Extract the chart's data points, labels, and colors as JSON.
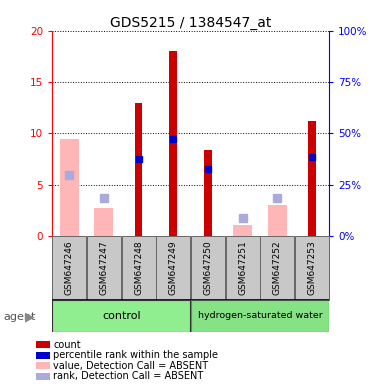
{
  "title": "GDS5215 / 1384547_at",
  "samples": [
    "GSM647246",
    "GSM647247",
    "GSM647248",
    "GSM647249",
    "GSM647250",
    "GSM647251",
    "GSM647252",
    "GSM647253"
  ],
  "red_bars": [
    0,
    0,
    13,
    18,
    8.4,
    0,
    0,
    11.2
  ],
  "pink_bars": [
    9.5,
    2.7,
    0,
    0,
    0,
    1.1,
    3.0,
    0
  ],
  "blue_squares": [
    0,
    0,
    7.5,
    9.5,
    6.5,
    0,
    0,
    7.7
  ],
  "lavender_squares": [
    6.0,
    3.7,
    0,
    0,
    0,
    1.8,
    3.7,
    0
  ],
  "ylim": [
    0,
    20
  ],
  "yticks_left": [
    0,
    5,
    10,
    15,
    20
  ],
  "yticks_right": [
    0,
    25,
    50,
    75,
    100
  ],
  "red_color": "#cc0000",
  "pink_color": "#ffb6b6",
  "blue_color": "#0000cc",
  "lavender_color": "#aaaadd",
  "green_light": "#90EE90",
  "green_dark": "#22cc22",
  "gray_box": "#c8c8c8",
  "legend_labels": [
    "count",
    "percentile rank within the sample",
    "value, Detection Call = ABSENT",
    "rank, Detection Call = ABSENT"
  ],
  "legend_colors": [
    "#cc0000",
    "#0000cc",
    "#ffb6b6",
    "#aaaadd"
  ]
}
